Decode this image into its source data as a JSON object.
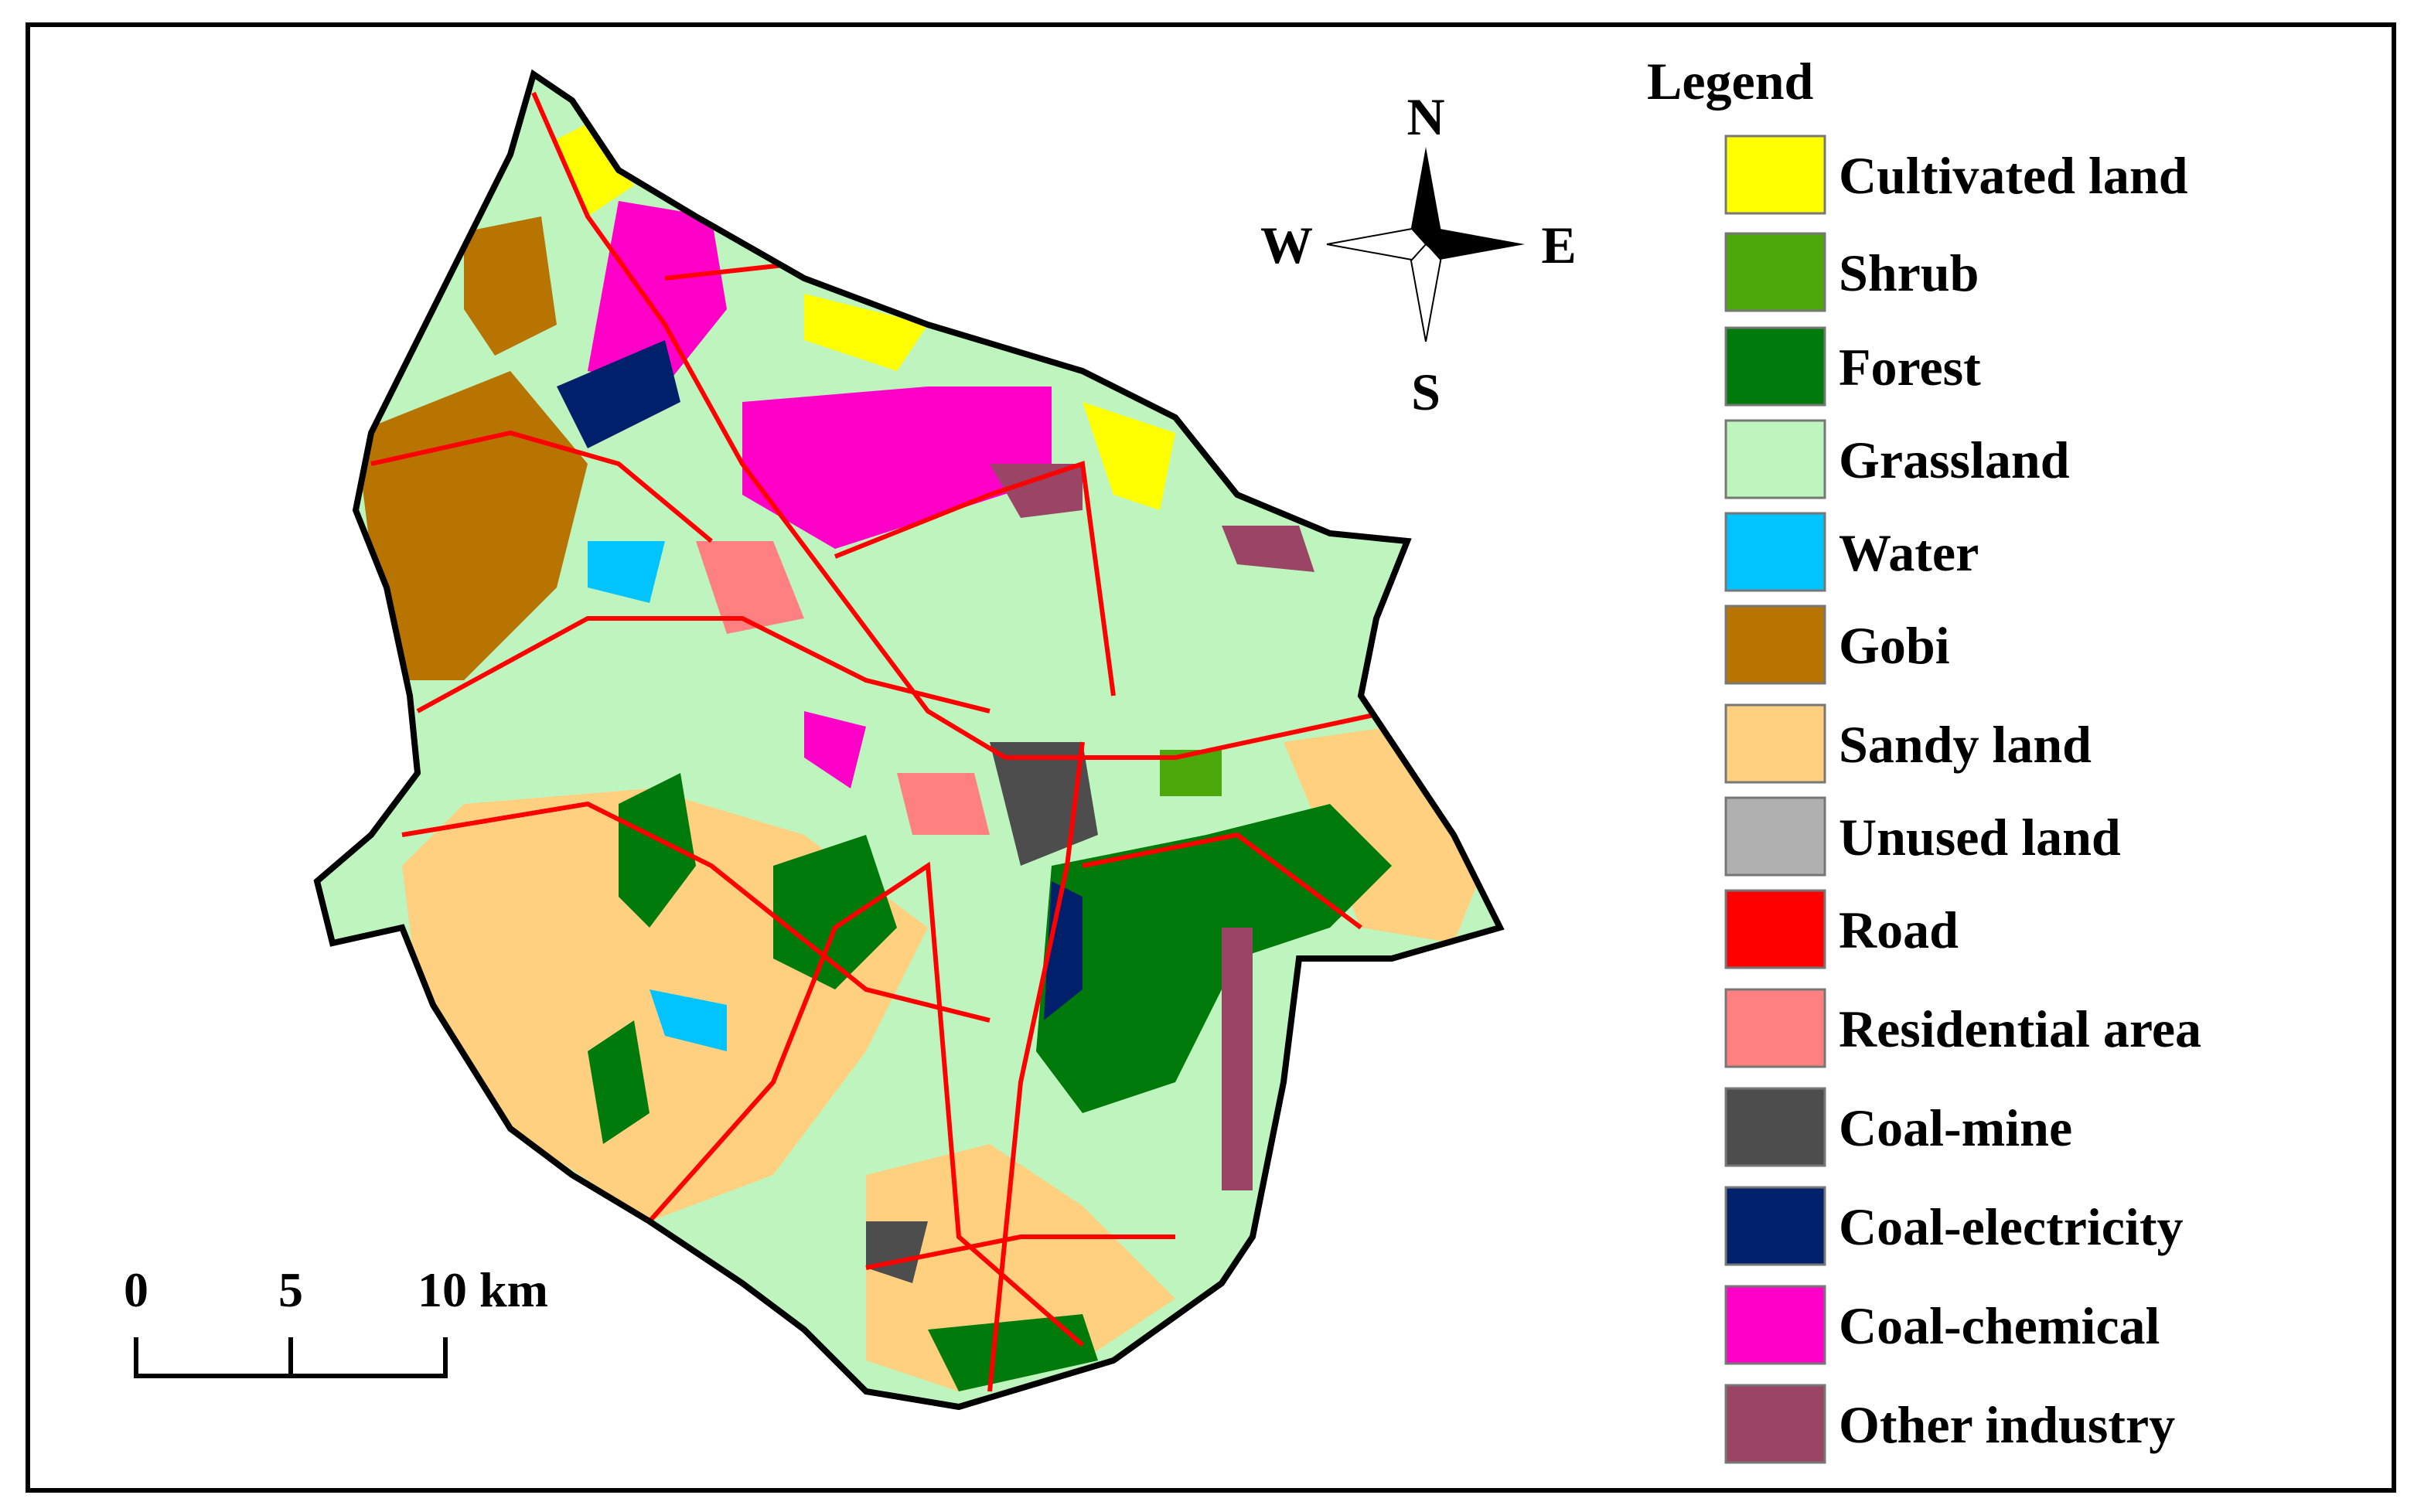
{
  "legend": {
    "title": "Legend",
    "items": [
      {
        "label": "Cultivated land",
        "color": "#ffff00"
      },
      {
        "label": "Shrub",
        "color": "#4ca80a"
      },
      {
        "label": "Forest",
        "color": "#007a0a"
      },
      {
        "label": "Grassland",
        "color": "#bef5be"
      },
      {
        "label": "Water",
        "color": "#00c3ff"
      },
      {
        "label": "Gobi",
        "color": "#b87400"
      },
      {
        "label": "Sandy land",
        "color": "#ffd080"
      },
      {
        "label": "Unused land",
        "color": "#b0b0b0"
      },
      {
        "label": "Road",
        "color": "#ff0000"
      },
      {
        "label": "Residential area",
        "color": "#ff8080"
      },
      {
        "label": "Coal-mine",
        "color": "#4d4d4d"
      },
      {
        "label": "Coal-electricity",
        "color": "#00206b"
      },
      {
        "label": "Coal-chemical",
        "color": "#ff00c8"
      },
      {
        "label": "Other industry",
        "color": "#9a4466"
      }
    ]
  },
  "compass": {
    "north": "N",
    "south": "S",
    "east": "E",
    "west": "W"
  },
  "scale_bar": {
    "labels": [
      "0",
      "5",
      "10 km"
    ]
  }
}
